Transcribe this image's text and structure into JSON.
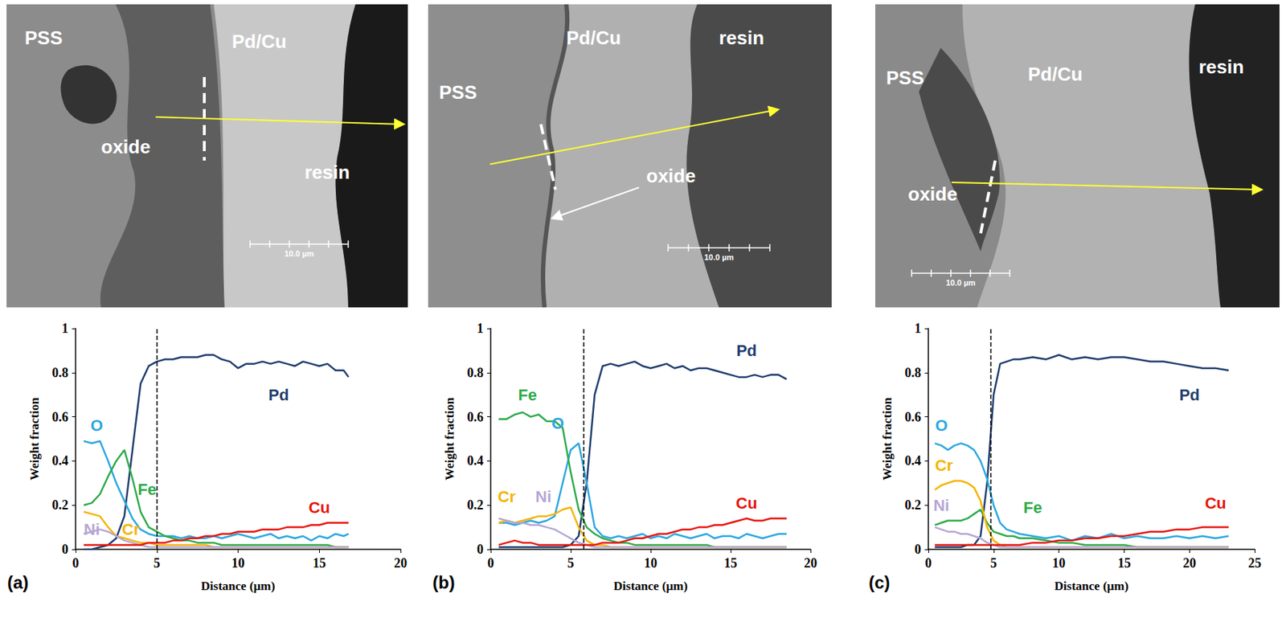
{
  "images": [
    {
      "labels": [
        "PSS",
        "oxide",
        "Pd/Cu",
        "resin"
      ],
      "scale_bar": "10.0 µm"
    },
    {
      "labels": [
        "PSS",
        "Pd/Cu",
        "resin",
        "oxide"
      ],
      "scale_bar": "10.0 µm"
    },
    {
      "labels": [
        "PSS",
        "Pd/Cu",
        "resin",
        "oxide"
      ],
      "scale_bar": "10.0 µm"
    }
  ],
  "chart_data": [
    {
      "type": "line",
      "panel_label": "(a)",
      "x_label": "Distance (µm)",
      "y_label": "Weight fraction",
      "xlim": [
        0,
        20
      ],
      "xticks": [
        0,
        5,
        10,
        15,
        20
      ],
      "ylim": [
        0,
        1
      ],
      "yticks": [
        0,
        0.2,
        0.4,
        0.6,
        0.8,
        1
      ],
      "grid": false,
      "interface_x": 5,
      "x": [
        0.5,
        1,
        1.5,
        2,
        2.5,
        3,
        3.5,
        4,
        4.5,
        5,
        5.5,
        6,
        6.5,
        7,
        7.5,
        8,
        8.5,
        9,
        9.5,
        10,
        10.5,
        11,
        11.5,
        12,
        12.5,
        13,
        13.5,
        14,
        14.5,
        15,
        15.5,
        16,
        16.5,
        16.8
      ],
      "series": [
        {
          "name": "Pd",
          "color": "#1f3d6e",
          "values": [
            0,
            0,
            0.01,
            0.02,
            0.05,
            0.15,
            0.45,
            0.75,
            0.83,
            0.85,
            0.86,
            0.86,
            0.87,
            0.87,
            0.87,
            0.88,
            0.88,
            0.86,
            0.85,
            0.82,
            0.84,
            0.84,
            0.85,
            0.84,
            0.85,
            0.84,
            0.83,
            0.85,
            0.84,
            0.83,
            0.84,
            0.81,
            0.81,
            0.78
          ]
        },
        {
          "name": "O",
          "color": "#2aa7e0",
          "values": [
            0.49,
            0.48,
            0.49,
            0.4,
            0.3,
            0.22,
            0.14,
            0.09,
            0.07,
            0.06,
            0.06,
            0.06,
            0.05,
            0.06,
            0.05,
            0.05,
            0.06,
            0.05,
            0.06,
            0.07,
            0.06,
            0.05,
            0.06,
            0.07,
            0.05,
            0.06,
            0.05,
            0.06,
            0.04,
            0.06,
            0.05,
            0.07,
            0.06,
            0.07
          ]
        },
        {
          "name": "Fe",
          "color": "#2eaa4a",
          "values": [
            0.2,
            0.21,
            0.25,
            0.33,
            0.4,
            0.45,
            0.32,
            0.17,
            0.1,
            0.08,
            0.06,
            0.05,
            0.04,
            0.04,
            0.03,
            0.03,
            0.03,
            0.02,
            0.02,
            0.02,
            0.02,
            0.02,
            0.02,
            0.02,
            0.02,
            0.02,
            0.02,
            0.02,
            0.02,
            0.02,
            0.02,
            0.01,
            0.01,
            0.01
          ]
        },
        {
          "name": "Cr",
          "color": "#f5b400",
          "values": [
            0.17,
            0.16,
            0.15,
            0.1,
            0.06,
            0.05,
            0.04,
            0.03,
            0.03,
            0.02,
            0.02,
            0.02,
            0.02,
            0.02,
            0.02,
            0.02,
            0.01,
            0.01,
            0.01,
            0.01,
            0.01,
            0.01,
            0.01,
            0.01,
            0.01,
            0.01,
            0.01,
            0.01,
            0.01,
            0.01,
            0.01,
            0.01,
            0.01,
            0.01
          ]
        },
        {
          "name": "Ni",
          "color": "#b6a6d4",
          "values": [
            0.07,
            0.08,
            0.09,
            0.08,
            0.06,
            0.04,
            0.03,
            0.02,
            0.01,
            0.01,
            0.01,
            0.01,
            0.01,
            0.01,
            0.01,
            0.01,
            0.01,
            0.01,
            0.01,
            0.01,
            0.01,
            0.01,
            0.01,
            0.01,
            0.01,
            0.01,
            0.01,
            0.01,
            0.01,
            0.01,
            0.01,
            0.01,
            0.01,
            0.01
          ]
        },
        {
          "name": "Cu",
          "color": "#e8120c",
          "values": [
            0.02,
            0.02,
            0.02,
            0.02,
            0.02,
            0.02,
            0.02,
            0.02,
            0.03,
            0.03,
            0.03,
            0.04,
            0.04,
            0.05,
            0.05,
            0.06,
            0.06,
            0.07,
            0.07,
            0.08,
            0.08,
            0.08,
            0.09,
            0.09,
            0.09,
            0.1,
            0.1,
            0.1,
            0.11,
            0.11,
            0.12,
            0.12,
            0.12,
            0.12
          ]
        }
      ]
    },
    {
      "type": "line",
      "panel_label": "(b)",
      "x_label": "Distance (µm)",
      "y_label": "Weight fraction",
      "xlim": [
        0,
        20
      ],
      "xticks": [
        0,
        5,
        10,
        15,
        20
      ],
      "ylim": [
        0,
        1
      ],
      "yticks": [
        0,
        0.2,
        0.4,
        0.6,
        0.8,
        1
      ],
      "grid": false,
      "interface_x": 5.8,
      "x": [
        0.5,
        1,
        1.5,
        2,
        2.5,
        3,
        3.5,
        4,
        4.5,
        5,
        5.5,
        6,
        6.5,
        7,
        7.5,
        8,
        8.5,
        9,
        9.5,
        10,
        10.5,
        11,
        11.5,
        12,
        12.5,
        13,
        13.5,
        14,
        14.5,
        15,
        15.5,
        16,
        16.5,
        17,
        17.5,
        18,
        18.5
      ],
      "series": [
        {
          "name": "Pd",
          "color": "#1f3d6e",
          "values": [
            0.01,
            0.01,
            0.01,
            0.01,
            0.01,
            0.01,
            0.01,
            0.01,
            0.01,
            0.02,
            0.06,
            0.3,
            0.7,
            0.83,
            0.84,
            0.83,
            0.84,
            0.85,
            0.83,
            0.82,
            0.83,
            0.84,
            0.82,
            0.83,
            0.81,
            0.82,
            0.82,
            0.81,
            0.8,
            0.79,
            0.78,
            0.78,
            0.79,
            0.78,
            0.79,
            0.79,
            0.77
          ]
        },
        {
          "name": "O",
          "color": "#2aa7e0",
          "values": [
            0.12,
            0.12,
            0.11,
            0.12,
            0.13,
            0.12,
            0.13,
            0.15,
            0.3,
            0.45,
            0.48,
            0.3,
            0.1,
            0.06,
            0.05,
            0.06,
            0.05,
            0.06,
            0.07,
            0.05,
            0.06,
            0.05,
            0.07,
            0.06,
            0.05,
            0.06,
            0.07,
            0.05,
            0.06,
            0.06,
            0.05,
            0.07,
            0.06,
            0.05,
            0.06,
            0.07,
            0.07
          ]
        },
        {
          "name": "Fe",
          "color": "#2eaa4a",
          "values": [
            0.59,
            0.59,
            0.61,
            0.62,
            0.6,
            0.61,
            0.58,
            0.58,
            0.55,
            0.35,
            0.18,
            0.1,
            0.07,
            0.05,
            0.04,
            0.03,
            0.03,
            0.02,
            0.02,
            0.02,
            0.02,
            0.02,
            0.02,
            0.02,
            0.02,
            0.02,
            0.02,
            0.01,
            0.01,
            0.01,
            0.01,
            0.01,
            0.01,
            0.01,
            0.01,
            0.01,
            0.01
          ]
        },
        {
          "name": "Cr",
          "color": "#f5b400",
          "values": [
            0.12,
            0.13,
            0.12,
            0.13,
            0.14,
            0.15,
            0.15,
            0.16,
            0.18,
            0.19,
            0.1,
            0.04,
            0.02,
            0.02,
            0.01,
            0.01,
            0.01,
            0.01,
            0.01,
            0.01,
            0.01,
            0.01,
            0.01,
            0.01,
            0.01,
            0.01,
            0.01,
            0.01,
            0.01,
            0.01,
            0.01,
            0.01,
            0.01,
            0.01,
            0.01,
            0.01,
            0.01
          ]
        },
        {
          "name": "Ni",
          "color": "#b6a6d4",
          "values": [
            0.14,
            0.13,
            0.12,
            0.12,
            0.11,
            0.11,
            0.1,
            0.09,
            0.07,
            0.05,
            0.03,
            0.02,
            0.01,
            0.01,
            0.01,
            0.01,
            0.01,
            0.01,
            0.01,
            0.01,
            0.01,
            0.01,
            0.01,
            0.01,
            0.01,
            0.01,
            0.01,
            0.01,
            0.01,
            0.01,
            0.01,
            0.01,
            0.01,
            0.01,
            0.01,
            0.01,
            0.01
          ]
        },
        {
          "name": "Cu",
          "color": "#e8120c",
          "values": [
            0.02,
            0.03,
            0.04,
            0.03,
            0.03,
            0.02,
            0.02,
            0.02,
            0.02,
            0.02,
            0.02,
            0.02,
            0.02,
            0.03,
            0.03,
            0.03,
            0.04,
            0.05,
            0.05,
            0.06,
            0.07,
            0.07,
            0.08,
            0.09,
            0.09,
            0.1,
            0.1,
            0.11,
            0.11,
            0.12,
            0.13,
            0.14,
            0.13,
            0.13,
            0.14,
            0.14,
            0.14
          ]
        }
      ]
    },
    {
      "type": "line",
      "panel_label": "(c)",
      "x_label": "Distance (µm)",
      "y_label": "Weight fraction",
      "xlim": [
        0,
        25
      ],
      "xticks": [
        0,
        5,
        10,
        15,
        20,
        25
      ],
      "ylim": [
        0,
        1
      ],
      "yticks": [
        0,
        0.2,
        0.4,
        0.6,
        0.8,
        1
      ],
      "grid": false,
      "interface_x": 4.8,
      "x": [
        0.5,
        1,
        1.5,
        2,
        2.5,
        3,
        3.5,
        4,
        4.5,
        5,
        5.5,
        6,
        6.5,
        7,
        8,
        9,
        10,
        11,
        12,
        13,
        14,
        15,
        16,
        17,
        18,
        19,
        20,
        21,
        22,
        23
      ],
      "series": [
        {
          "name": "Pd",
          "color": "#1f3d6e",
          "values": [
            0.01,
            0.01,
            0.01,
            0.01,
            0.01,
            0.02,
            0.02,
            0.06,
            0.3,
            0.7,
            0.84,
            0.85,
            0.86,
            0.86,
            0.87,
            0.86,
            0.88,
            0.86,
            0.87,
            0.86,
            0.87,
            0.87,
            0.86,
            0.85,
            0.85,
            0.84,
            0.83,
            0.82,
            0.82,
            0.81
          ]
        },
        {
          "name": "O",
          "color": "#2aa7e0",
          "values": [
            0.48,
            0.47,
            0.45,
            0.47,
            0.48,
            0.47,
            0.45,
            0.4,
            0.32,
            0.2,
            0.12,
            0.09,
            0.08,
            0.07,
            0.06,
            0.05,
            0.06,
            0.04,
            0.06,
            0.05,
            0.07,
            0.05,
            0.06,
            0.05,
            0.05,
            0.06,
            0.05,
            0.06,
            0.05,
            0.06
          ]
        },
        {
          "name": "Fe",
          "color": "#2eaa4a",
          "values": [
            0.11,
            0.12,
            0.13,
            0.13,
            0.13,
            0.14,
            0.16,
            0.18,
            0.12,
            0.08,
            0.07,
            0.06,
            0.06,
            0.05,
            0.05,
            0.04,
            0.03,
            0.03,
            0.02,
            0.02,
            0.02,
            0.02,
            0.01,
            0.01,
            0.01,
            0.01,
            0.01,
            0.01,
            0.01,
            0.01
          ]
        },
        {
          "name": "Cr",
          "color": "#f5b400",
          "values": [
            0.27,
            0.29,
            0.3,
            0.31,
            0.31,
            0.3,
            0.28,
            0.22,
            0.1,
            0.04,
            0.02,
            0.01,
            0.01,
            0.01,
            0.01,
            0.01,
            0.01,
            0.01,
            0.01,
            0.01,
            0.01,
            0.01,
            0.01,
            0.01,
            0.01,
            0.01,
            0.01,
            0.01,
            0.01,
            0.01
          ]
        },
        {
          "name": "Ni",
          "color": "#b6a6d4",
          "values": [
            0.1,
            0.09,
            0.08,
            0.08,
            0.07,
            0.07,
            0.06,
            0.05,
            0.03,
            0.02,
            0.01,
            0.01,
            0.01,
            0.01,
            0.01,
            0.01,
            0.01,
            0.01,
            0.01,
            0.01,
            0.01,
            0.01,
            0.01,
            0.01,
            0.01,
            0.01,
            0.01,
            0.01,
            0.01,
            0.01
          ]
        },
        {
          "name": "Cu",
          "color": "#e8120c",
          "values": [
            0.02,
            0.02,
            0.02,
            0.02,
            0.02,
            0.02,
            0.02,
            0.02,
            0.02,
            0.02,
            0.02,
            0.02,
            0.02,
            0.02,
            0.03,
            0.03,
            0.04,
            0.04,
            0.05,
            0.05,
            0.06,
            0.06,
            0.07,
            0.08,
            0.08,
            0.09,
            0.09,
            0.1,
            0.1,
            0.1
          ]
        }
      ]
    }
  ]
}
